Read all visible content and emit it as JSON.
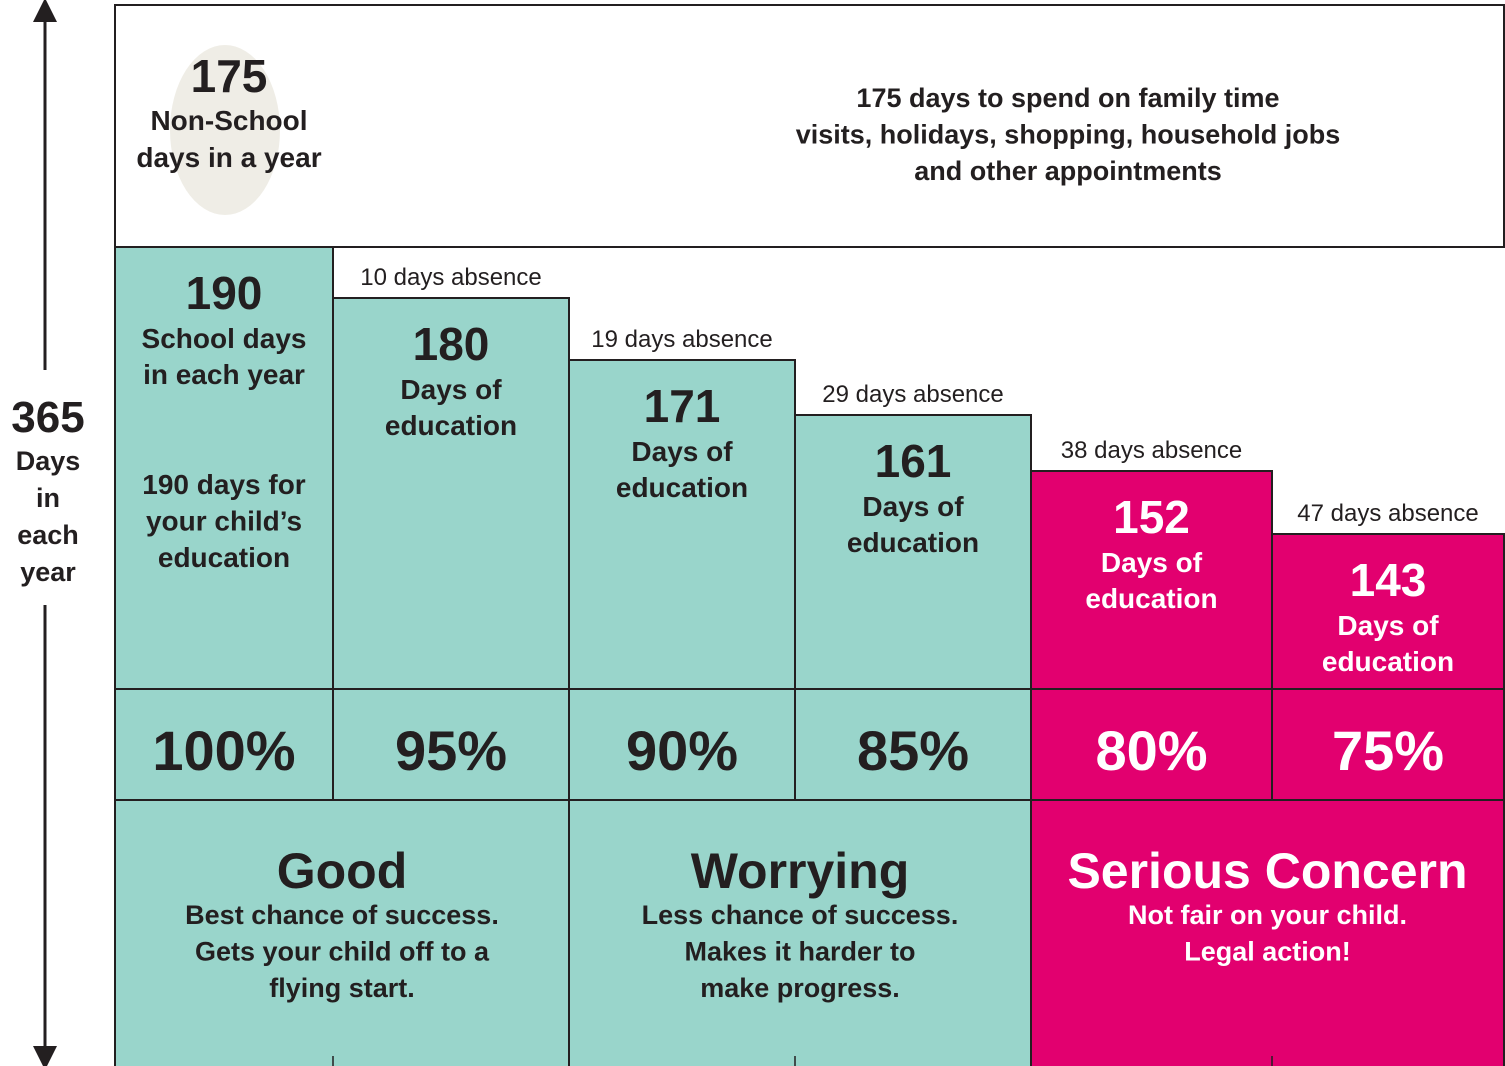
{
  "total": {
    "number": "365",
    "lines": [
      "Days",
      "in",
      "each",
      "year"
    ]
  },
  "non_school": {
    "number": "175",
    "lines": [
      "Non-School",
      "days in a year"
    ]
  },
  "family_time": [
    "175 days to spend on family time",
    "visits, holidays, shopping, household jobs",
    "and other appointments"
  ],
  "columns": [
    {
      "number": "190",
      "lines": [
        "School days",
        "in each year"
      ],
      "note": [
        "190 days for",
        "your child’s",
        "education"
      ],
      "percent": "100%"
    },
    {
      "absence": "10 days absence",
      "number": "180",
      "lines": [
        "Days of",
        "education"
      ],
      "percent": "95%"
    },
    {
      "absence": "19 days absence",
      "number": "171",
      "lines": [
        "Days of",
        "education"
      ],
      "percent": "90%"
    },
    {
      "absence": "29 days absence",
      "number": "161",
      "lines": [
        "Days of",
        "education"
      ],
      "percent": "85%"
    },
    {
      "absence": "38 days absence",
      "number": "152",
      "lines": [
        "Days of",
        "education"
      ],
      "percent": "80%"
    },
    {
      "absence": "47 days absence",
      "number": "143",
      "lines": [
        "Days of",
        "education"
      ],
      "percent": "75%"
    }
  ],
  "ratings": [
    {
      "title": "Good",
      "lines": [
        "Best chance of success.",
        "Gets your child off to a",
        "flying start."
      ]
    },
    {
      "title": "Worrying",
      "lines": [
        "Less chance of success.",
        "Makes it harder to",
        "make progress."
      ]
    },
    {
      "title": "Serious Concern",
      "lines": [
        "Not fair on your child.",
        "Legal action!"
      ]
    }
  ]
}
